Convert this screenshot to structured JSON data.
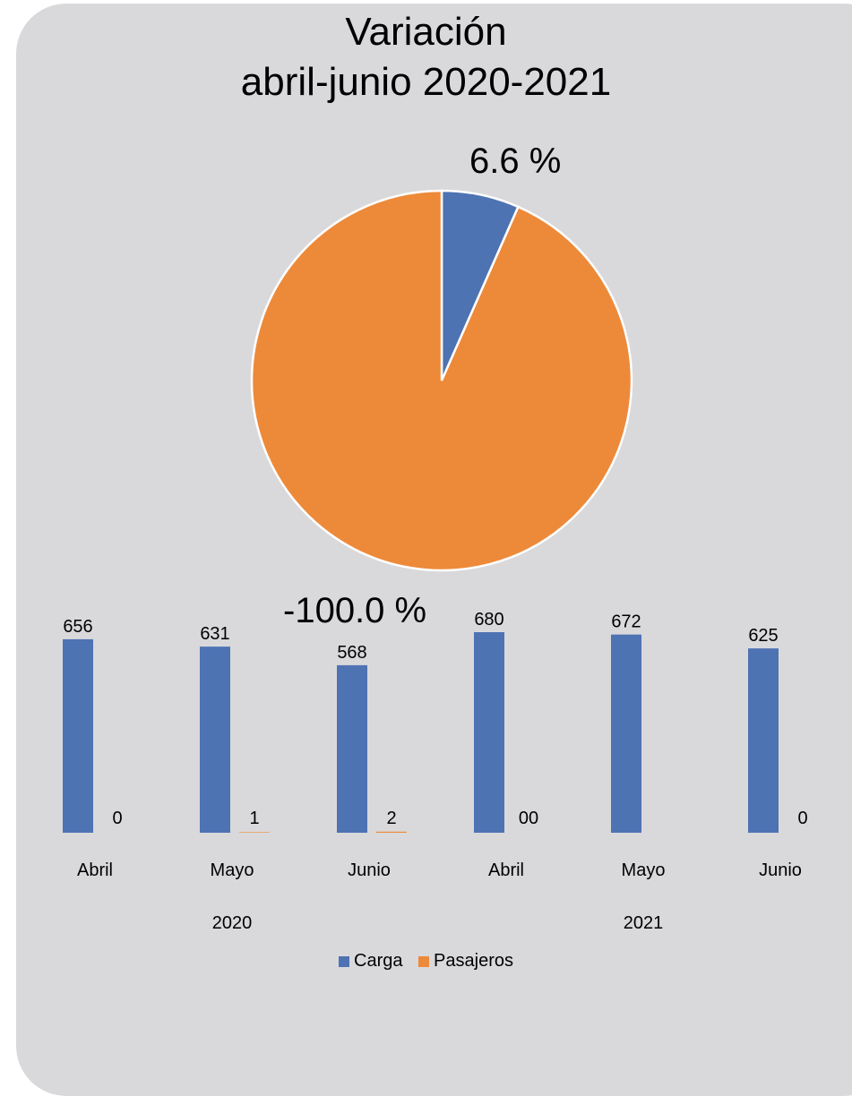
{
  "chart_data": [
    {
      "type": "pie",
      "title": "Variación",
      "subtitle": "abril-junio 2020-2021",
      "slices": [
        {
          "name": "Carga",
          "value": 6.6,
          "label": "6.6 %",
          "color": "#4e73b3"
        },
        {
          "name": "Pasajeros",
          "value": -100.0,
          "label": "-100.0 %",
          "color": "#ed8a3a"
        }
      ],
      "slice_fractions": [
        0.066,
        0.934
      ]
    },
    {
      "type": "bar",
      "categories": [
        "Abril",
        "Mayo",
        "Junio",
        "Abril",
        "Mayo",
        "Junio"
      ],
      "groups": [
        {
          "label": "2020",
          "span": [
            0,
            2
          ]
        },
        {
          "label": "2021",
          "span": [
            3,
            5
          ]
        }
      ],
      "series": [
        {
          "name": "Carga",
          "color": "#4e73b3",
          "values": [
            656,
            631,
            568,
            680,
            672,
            625
          ],
          "labels": [
            "656",
            "631",
            "568",
            "680",
            "672",
            "625"
          ]
        },
        {
          "name": "Pasajeros",
          "color": "#ed8a3a",
          "values": [
            0,
            1,
            2,
            0,
            0,
            0
          ],
          "labels": [
            "0",
            "1",
            "2",
            "00",
            "",
            "0"
          ]
        }
      ],
      "ylim": [
        0,
        700
      ],
      "legend": "bottom"
    }
  ]
}
